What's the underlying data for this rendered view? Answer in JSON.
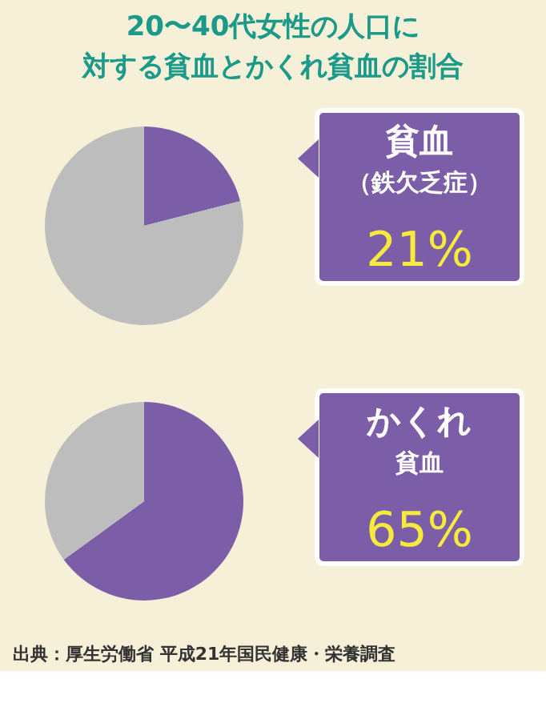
{
  "chart_data": [
    {
      "type": "pie",
      "title": "20〜40代女性の人口に",
      "subtitle": "対する貧血とかくれ貧血の割合",
      "categories": [
        "貧血（鉄欠乏症）",
        null
      ],
      "values": [
        21,
        79
      ],
      "colors": [
        "#7b5ea7",
        "#bdbdbd"
      ],
      "value_labels": [
        "21%",
        null
      ]
    },
    {
      "type": "pie",
      "categories": [
        "かくれ貧血",
        null
      ],
      "values": [
        65,
        35
      ],
      "colors": [
        "#7b5ea7",
        "#bdbdbd"
      ],
      "value_labels": [
        "65%",
        null
      ],
      "annotations": [
        "出典：厚生労働省 平成21年国民健康・栄養調査"
      ]
    }
  ]
}
